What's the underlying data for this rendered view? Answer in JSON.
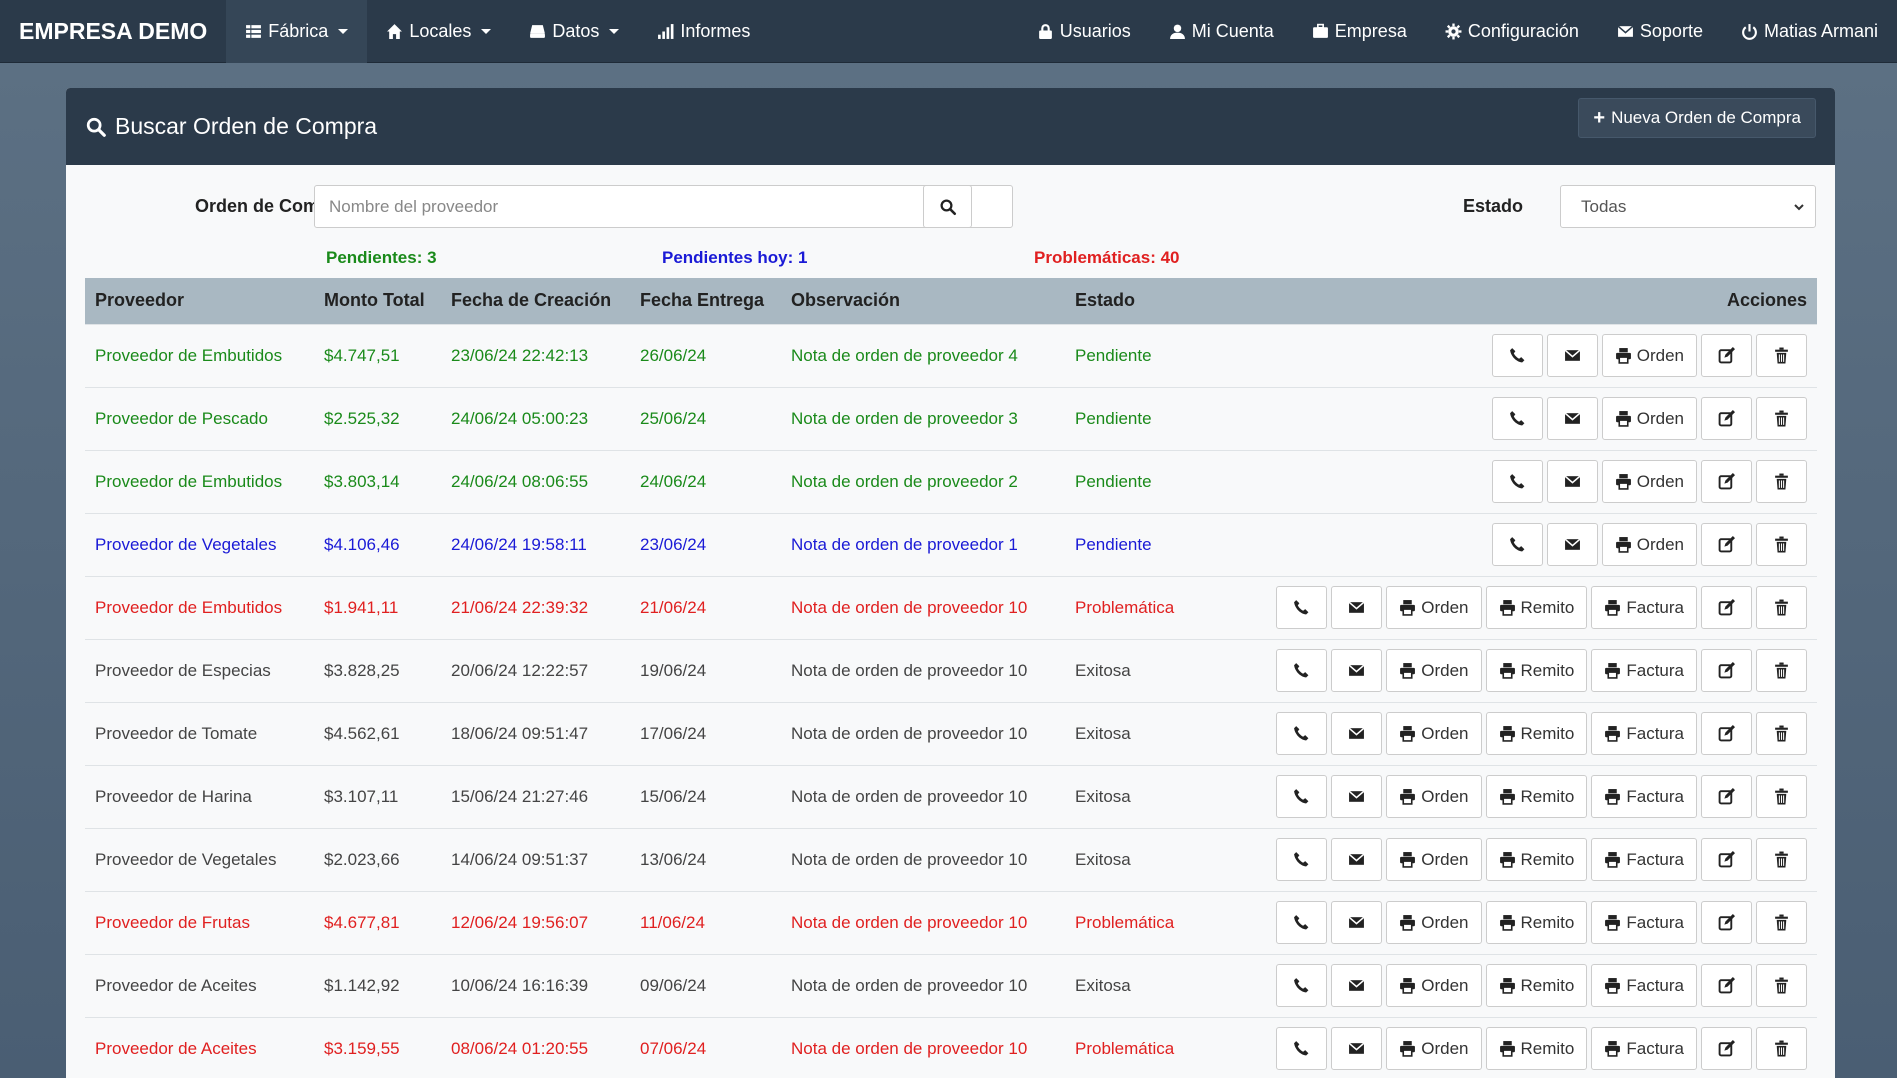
{
  "nav": {
    "brand": "EMPRESA DEMO",
    "left": [
      {
        "label": "Fábrica",
        "icon": "grid-icon",
        "dropdown": true,
        "active": true
      },
      {
        "label": "Locales",
        "icon": "home-icon",
        "dropdown": true
      },
      {
        "label": "Datos",
        "icon": "hdd-icon",
        "dropdown": true
      },
      {
        "label": "Informes",
        "icon": "signal-icon",
        "dropdown": false
      }
    ],
    "right": [
      {
        "label": "Usuarios",
        "icon": "lock-icon"
      },
      {
        "label": "Mi Cuenta",
        "icon": "user-icon"
      },
      {
        "label": "Empresa",
        "icon": "briefcase-icon"
      },
      {
        "label": "Configuración",
        "icon": "cog-icon"
      },
      {
        "label": "Soporte",
        "icon": "envelope-icon"
      },
      {
        "label": "Matias Armani",
        "icon": "power-icon"
      }
    ]
  },
  "panel": {
    "title": "Buscar Orden de Compra",
    "new_button": "Nueva Orden de Compra"
  },
  "filters": {
    "order_label": "Orden de Compra",
    "search_placeholder": "Nombre del proveedor",
    "estado_label": "Estado",
    "estado_value": "Todas"
  },
  "counters": {
    "pendientes": "Pendientes: 3",
    "hoy": "Pendientes hoy: 1",
    "problematicas": "Problemáticas: 40"
  },
  "table": {
    "headers": [
      "Proveedor",
      "Monto Total",
      "Fecha de Creación",
      "Fecha Entrega",
      "Observación",
      "Estado",
      "Acciones"
    ],
    "action_labels": {
      "orden": "Orden",
      "remito": "Remito",
      "factura": "Factura"
    },
    "rows": [
      {
        "proveedor": "Proveedor de Embutidos",
        "monto": "$4.747,51",
        "creacion": "23/06/24 22:42:13",
        "entrega": "26/06/24",
        "obs": "Nota de orden de proveedor 4",
        "estado": "Pendiente",
        "cls": "pend",
        "full": false
      },
      {
        "proveedor": "Proveedor de Pescado",
        "monto": "$2.525,32",
        "creacion": "24/06/24 05:00:23",
        "entrega": "25/06/24",
        "obs": "Nota de orden de proveedor 3",
        "estado": "Pendiente",
        "cls": "pend",
        "full": false
      },
      {
        "proveedor": "Proveedor de Embutidos",
        "monto": "$3.803,14",
        "creacion": "24/06/24 08:06:55",
        "entrega": "24/06/24",
        "obs": "Nota de orden de proveedor 2",
        "estado": "Pendiente",
        "cls": "pend",
        "full": false
      },
      {
        "proveedor": "Proveedor de Vegetales",
        "monto": "$4.106,46",
        "creacion": "24/06/24 19:58:11",
        "entrega": "23/06/24",
        "obs": "Nota de orden de proveedor 1",
        "estado": "Pendiente",
        "cls": "today",
        "full": false
      },
      {
        "proveedor": "Proveedor de Embutidos",
        "monto": "$1.941,11",
        "creacion": "21/06/24 22:39:32",
        "entrega": "21/06/24",
        "obs": "Nota de orden de proveedor 10",
        "estado": "Problemática",
        "cls": "prob",
        "full": true
      },
      {
        "proveedor": "Proveedor de Especias",
        "monto": "$3.828,25",
        "creacion": "20/06/24 12:22:57",
        "entrega": "19/06/24",
        "obs": "Nota de orden de proveedor 10",
        "estado": "Exitosa",
        "cls": "ok",
        "full": true
      },
      {
        "proveedor": "Proveedor de Tomate",
        "monto": "$4.562,61",
        "creacion": "18/06/24 09:51:47",
        "entrega": "17/06/24",
        "obs": "Nota de orden de proveedor 10",
        "estado": "Exitosa",
        "cls": "ok",
        "full": true
      },
      {
        "proveedor": "Proveedor de Harina",
        "monto": "$3.107,11",
        "creacion": "15/06/24 21:27:46",
        "entrega": "15/06/24",
        "obs": "Nota de orden de proveedor 10",
        "estado": "Exitosa",
        "cls": "ok",
        "full": true
      },
      {
        "proveedor": "Proveedor de Vegetales",
        "monto": "$2.023,66",
        "creacion": "14/06/24 09:51:37",
        "entrega": "13/06/24",
        "obs": "Nota de orden de proveedor 10",
        "estado": "Exitosa",
        "cls": "ok",
        "full": true
      },
      {
        "proveedor": "Proveedor de Frutas",
        "monto": "$4.677,81",
        "creacion": "12/06/24 19:56:07",
        "entrega": "11/06/24",
        "obs": "Nota de orden de proveedor 10",
        "estado": "Problemática",
        "cls": "prob",
        "full": true
      },
      {
        "proveedor": "Proveedor de Aceites",
        "monto": "$1.142,92",
        "creacion": "10/06/24 16:16:39",
        "entrega": "09/06/24",
        "obs": "Nota de orden de proveedor 10",
        "estado": "Exitosa",
        "cls": "ok",
        "full": true
      },
      {
        "proveedor": "Proveedor de Aceites",
        "monto": "$3.159,55",
        "creacion": "08/06/24 01:20:55",
        "entrega": "07/06/24",
        "obs": "Nota de orden de proveedor 10",
        "estado": "Problemática",
        "cls": "prob",
        "full": true
      }
    ]
  },
  "colors": {
    "navbar": "#2b3a4a",
    "pendiente": "#1a8a1a",
    "hoy": "#1a1ad6",
    "problematica": "#e02020",
    "table_header": "#a9b8c2"
  }
}
